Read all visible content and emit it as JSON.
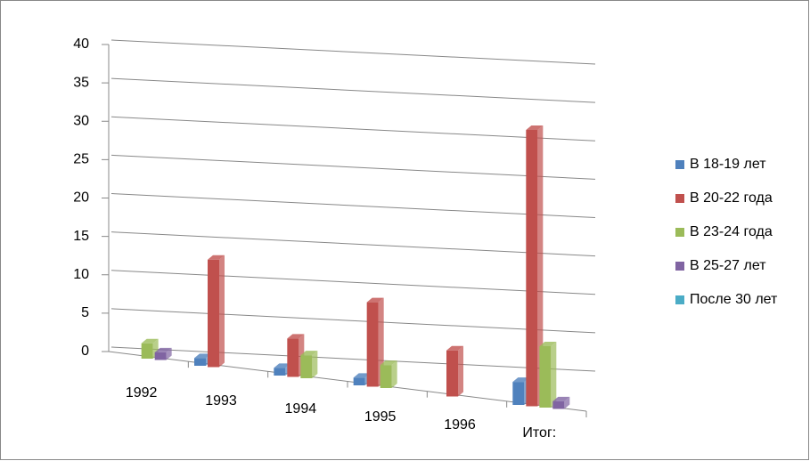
{
  "chart_data": {
    "type": "bar3d",
    "categories": [
      "1992",
      "1993",
      "1994",
      "1995",
      "1996",
      "Итог:"
    ],
    "series": [
      {
        "name": "В 18-19 лет",
        "color": "#4f81bd",
        "values": [
          0,
          1,
          1,
          1,
          0,
          3
        ]
      },
      {
        "name": "В 20-22 года",
        "color": "#c0504d",
        "values": [
          0,
          14,
          5,
          11,
          6,
          36
        ]
      },
      {
        "name": "В 23-24 года",
        "color": "#9bbb59",
        "values": [
          2,
          0,
          3,
          3,
          0,
          8
        ]
      },
      {
        "name": "В 25-27 лет",
        "color": "#8064a2",
        "values": [
          1,
          0,
          0,
          0,
          0,
          1
        ]
      },
      {
        "name": "После 30 лет",
        "color": "#4bacc6",
        "values": [
          0,
          0,
          0,
          0,
          0,
          0
        ]
      }
    ],
    "ylim": [
      0,
      40
    ],
    "yticks": [
      0,
      5,
      10,
      15,
      20,
      25,
      30,
      35,
      40
    ],
    "grid": true,
    "legend": "right"
  }
}
